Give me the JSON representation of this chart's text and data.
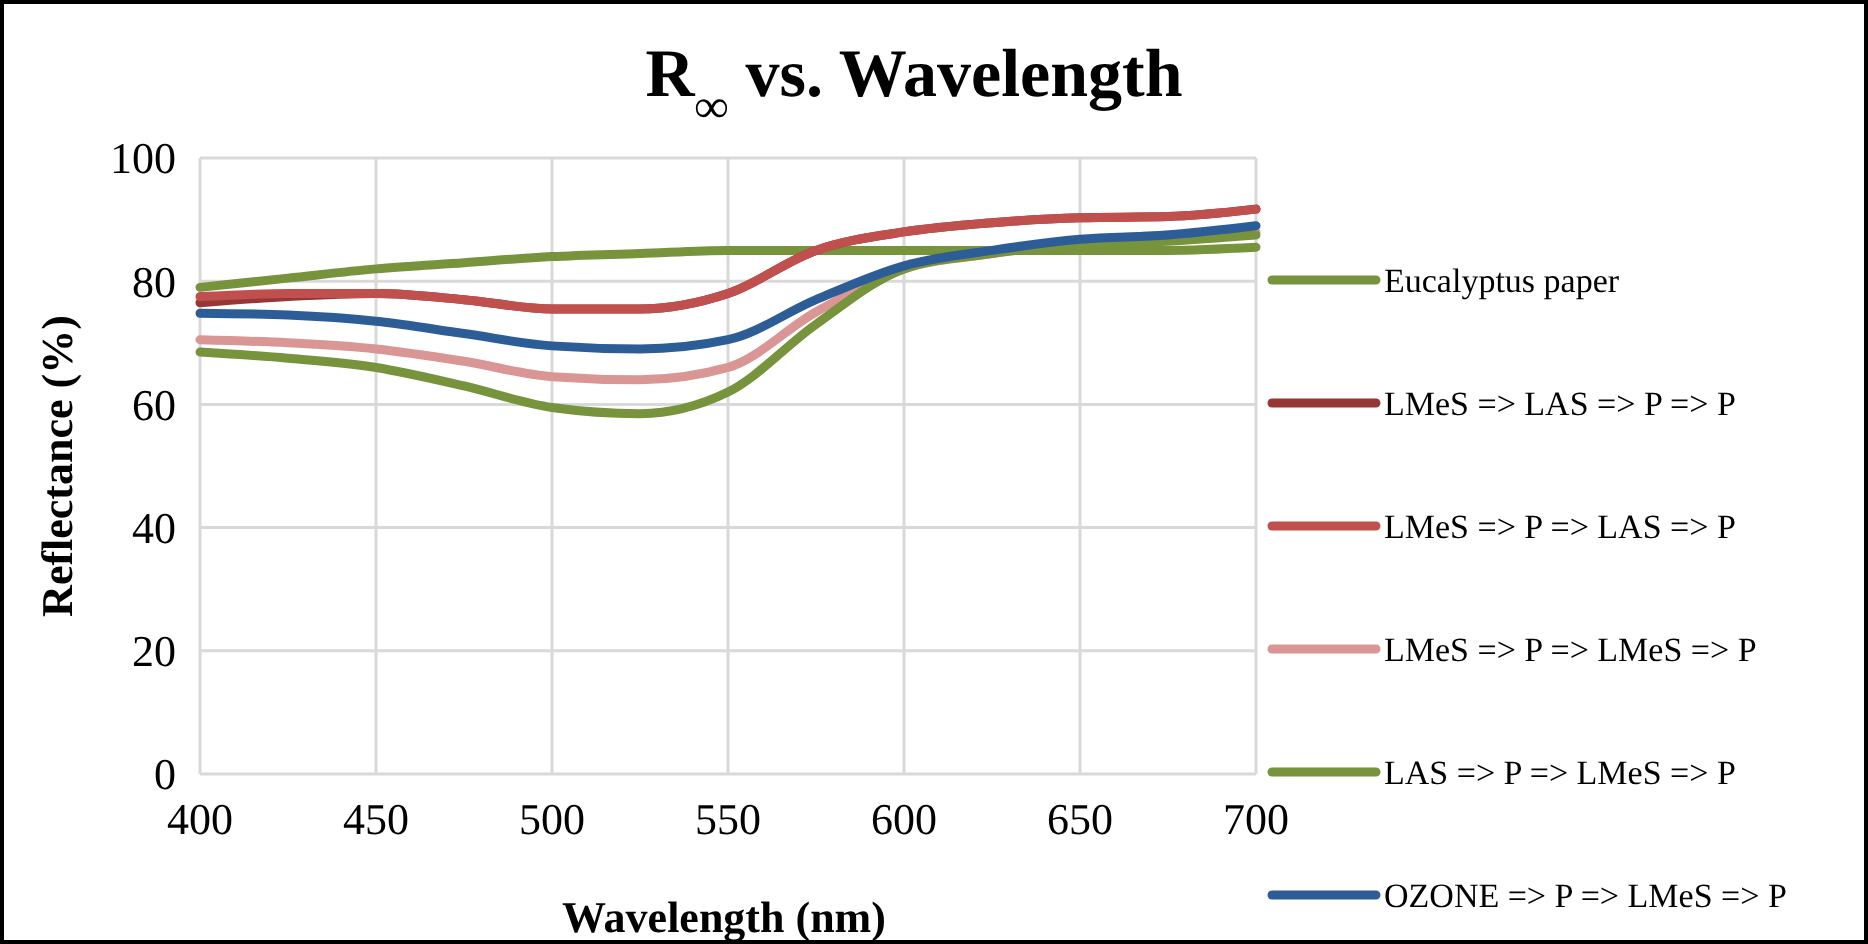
{
  "chart_data": {
    "type": "line",
    "title": "R$_{∞}$ vs. Wavelength",
    "xlabel": "Wavelength (nm)",
    "ylabel": "Reflectance (%)",
    "x": [
      400,
      425,
      450,
      475,
      500,
      525,
      550,
      575,
      600,
      625,
      650,
      675,
      700
    ],
    "xlim": [
      400,
      700
    ],
    "xticks": [
      400,
      450,
      500,
      550,
      600,
      650,
      700
    ],
    "ylim": [
      0,
      100
    ],
    "yticks": [
      0,
      20,
      40,
      60,
      80,
      100
    ],
    "grid": true,
    "legend": "right",
    "marker": "none",
    "line_style": "solid",
    "series": [
      {
        "name": "Eucalyptus paper",
        "color": "#77933c",
        "values": [
          79,
          80.5,
          82,
          83,
          84,
          84.5,
          85,
          85,
          85,
          85,
          85,
          85,
          85.5
        ]
      },
      {
        "name": "LMeS => LAS => P => P",
        "color": "#953735",
        "values": [
          76.5,
          77.5,
          78,
          77,
          75.5,
          75.5,
          78,
          85,
          88,
          89.5,
          90.3,
          90.5,
          91.7
        ]
      },
      {
        "name": "LMeS => P => LAS => P",
        "color": "#c0504d",
        "values": [
          77.5,
          78,
          78,
          77,
          75.5,
          75.5,
          78,
          85,
          88,
          89.5,
          90.3,
          90.5,
          91.7
        ]
      },
      {
        "name": "LMeS => P => LMeS => P",
        "color": "#d99694",
        "values": [
          70.5,
          70,
          69,
          67,
          64.5,
          64,
          66,
          75,
          82,
          84.5,
          86.5,
          87.5,
          88
        ]
      },
      {
        "name": "LAS => P => LMeS => P",
        "color": "#77933c",
        "values": [
          68.5,
          67.5,
          66,
          63,
          59.5,
          58.5,
          62,
          73,
          82,
          84.5,
          86,
          86.5,
          87.5
        ]
      },
      {
        "name": "OZONE => P => LMeS => P",
        "color": "#2c5d96",
        "values": [
          74.8,
          74.5,
          73.5,
          71.5,
          69.5,
          69,
          70.5,
          77,
          82.5,
          85,
          86.8,
          87.5,
          89
        ]
      }
    ]
  }
}
